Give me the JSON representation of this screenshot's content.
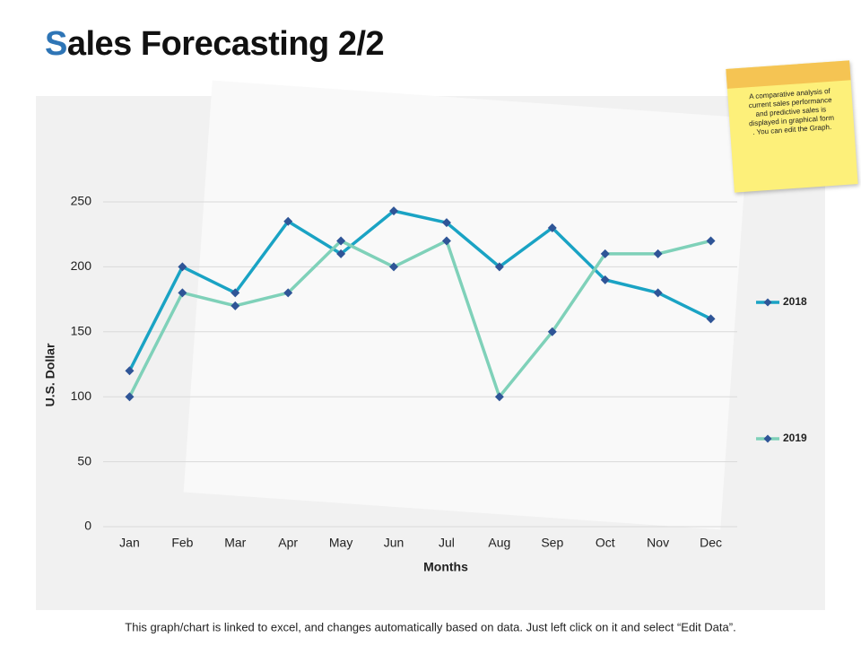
{
  "title": "Sales Forecasting 2/2",
  "note": "A comparative analysis of current sales performance and predictive sales is displayed in graphical form . You can edit the Graph.",
  "footer": "This graph/chart is linked to excel, and changes automatically based on data.  Just left click on it and select “Edit Data”.",
  "chart_data": {
    "type": "line",
    "x_label": "Months",
    "y_label": "U.S. Dollar",
    "categories": [
      "Jan",
      "Feb",
      "Mar",
      "Apr",
      "May",
      "Jun",
      "Jul",
      "Aug",
      "Sep",
      "Oct",
      "Nov",
      "Dec"
    ],
    "series": [
      {
        "name": "2018",
        "color": "#1aa3c4",
        "marker_color": "#2f5597",
        "values": [
          120,
          200,
          180,
          235,
          210,
          243,
          234,
          200,
          230,
          190,
          180,
          160
        ]
      },
      {
        "name": "2019",
        "color": "#7fd1b9",
        "marker_color": "#2f5597",
        "values": [
          100,
          180,
          170,
          180,
          220,
          200,
          220,
          100,
          150,
          210,
          210,
          220
        ]
      }
    ],
    "ylim": [
      0,
      250
    ],
    "yticks": [
      0,
      50,
      100,
      150,
      200,
      250
    ],
    "grid": true,
    "legend": "right"
  }
}
